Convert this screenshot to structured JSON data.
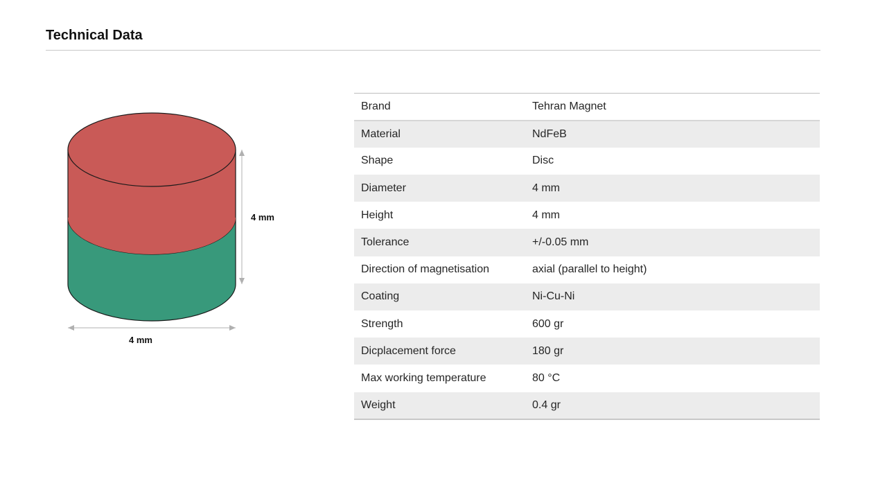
{
  "page": {
    "title": "Technical Data"
  },
  "diagram": {
    "height_label": "4 mm",
    "diameter_label": "4 mm",
    "colors": {
      "top_pole": "#c95a57",
      "bottom_pole": "#38997b",
      "outline": "#1a1a1a",
      "dimension_line": "#b0b0b0"
    }
  },
  "specs": [
    {
      "label": "Brand",
      "value": "Tehran Magnet"
    },
    {
      "label": "Material",
      "value": "NdFeB"
    },
    {
      "label": "Shape",
      "value": "Disc"
    },
    {
      "label": "Diameter",
      "value": "4 mm"
    },
    {
      "label": "Height",
      "value": "4 mm"
    },
    {
      "label": "Tolerance",
      "value": "+/-0.05 mm"
    },
    {
      "label": "Direction of magnetisation",
      "value": "axial (parallel to height)"
    },
    {
      "label": "Coating",
      "value": "Ni-Cu-Ni"
    },
    {
      "label": "Strength",
      "value": "600 gr"
    },
    {
      "label": "Dicplacement force",
      "value": "180 gr"
    },
    {
      "label": "Max working temperature",
      "value": "80 °C"
    },
    {
      "label": "Weight",
      "value": "0.4 gr"
    }
  ]
}
